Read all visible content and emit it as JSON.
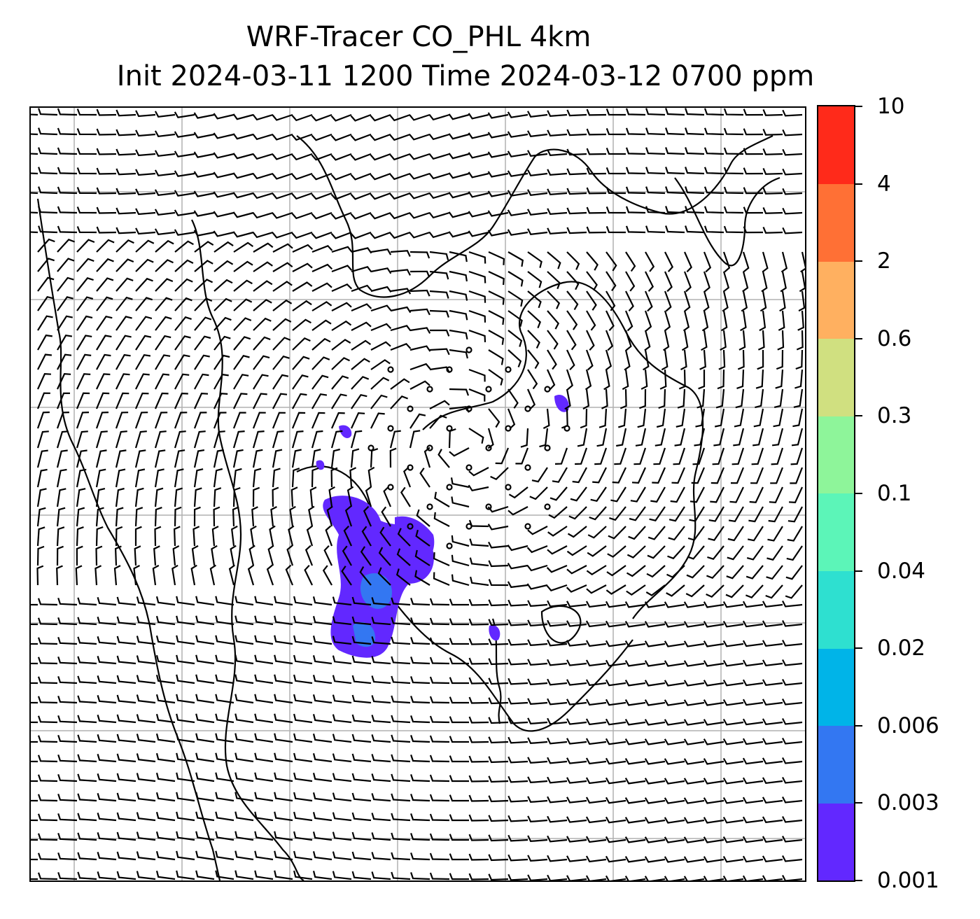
{
  "title": {
    "line1": "WRF-Tracer CO_PHL 4km",
    "line2": "Init 2024-03-11 1200 Time 2024-03-12 0700 ppm"
  },
  "map": {
    "field": "CO_PHL tracer concentration",
    "overlay": "wind barbs",
    "gridlines": true,
    "coastlines": true
  },
  "colorbar": {
    "levels": [
      "0.001",
      "0.003",
      "0.006",
      "0.02",
      "0.04",
      "0.1",
      "0.3",
      "0.6",
      "2",
      "4",
      "10"
    ],
    "colors": [
      "#6228ff",
      "#3377f2",
      "#00b4e8",
      "#2ee0d0",
      "#5cf5b8",
      "#8ef59a",
      "#d0e080",
      "#ffb060",
      "#ff7035",
      "#ff2a1a"
    ]
  },
  "colors": {
    "tracer_low": "#6228ff",
    "tracer_mid": "#3377f2",
    "grid": "#b0b0b0",
    "barb": "#000000"
  }
}
